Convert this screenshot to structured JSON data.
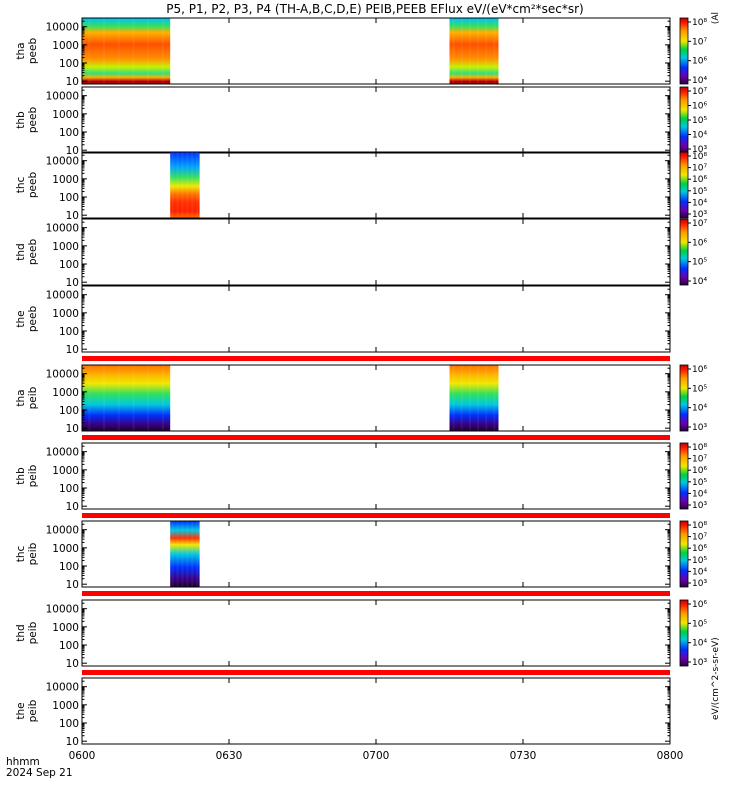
{
  "chart_data": {
    "type": "heatmap",
    "title": "P5, P1, P2, P3, P4 (TH-A,B,C,D,E) PEIB,PEEB EFlux eV/(eV*cm²*sec*sr)",
    "colorbar_title": "eV/(cm^2-s-sr-eV)",
    "colorbar_title_cut": "(Al",
    "x_axis": {
      "tick_labels": [
        "0600",
        "0630",
        "0700",
        "0730",
        "0800"
      ],
      "range": [
        "06:00",
        "08:00"
      ],
      "corner_label": "hhmm",
      "date_label": "2024 Sep 21"
    },
    "y_axis": {
      "scale": "log",
      "tick_labels": [
        "10",
        "100",
        "1000",
        "10000"
      ],
      "range_eV": [
        7,
        30000
      ]
    },
    "panels": [
      {
        "probe": "tha",
        "product": "peeb",
        "colorbar": [
          "10⁴",
          "10⁶",
          "10⁷",
          "10⁸"
        ],
        "data_intervals": [
          [
            "06:00",
            "06:18"
          ],
          [
            "07:15",
            "07:25"
          ]
        ]
      },
      {
        "probe": "thb",
        "product": "peeb",
        "colorbar": [
          "10³",
          "10⁴",
          "10⁵",
          "10⁶",
          "10⁷"
        ],
        "data_intervals": []
      },
      {
        "probe": "thc",
        "product": "peeb",
        "colorbar": [
          "10³",
          "10⁴",
          "10⁵",
          "10⁶",
          "10⁷",
          "10⁸"
        ],
        "data_intervals": [
          [
            "06:18",
            "06:24"
          ]
        ]
      },
      {
        "probe": "thd",
        "product": "peeb",
        "colorbar": [
          "10⁴",
          "10⁵",
          "10⁶",
          "10⁷"
        ],
        "data_intervals": []
      },
      {
        "probe": "the",
        "product": "peeb",
        "colorbar": [],
        "data_intervals": []
      },
      {
        "probe": "tha",
        "product": "peib",
        "colorbar": [
          "10³",
          "10⁴",
          "10⁵",
          "10⁶"
        ],
        "data_intervals": [
          [
            "06:00",
            "06:18"
          ],
          [
            "07:15",
            "07:25"
          ]
        ]
      },
      {
        "probe": "thb",
        "product": "peib",
        "colorbar": [
          "10³",
          "10⁴",
          "10⁵",
          "10⁶",
          "10⁷",
          "10⁸"
        ],
        "data_intervals": []
      },
      {
        "probe": "thc",
        "product": "peib",
        "colorbar": [
          "10³",
          "10⁴",
          "10⁵",
          "10⁶",
          "10⁷",
          "10⁸"
        ],
        "data_intervals": [
          [
            "06:18",
            "06:24"
          ]
        ]
      },
      {
        "probe": "thd",
        "product": "peib",
        "colorbar": [
          "10³",
          "10⁴",
          "10⁵",
          "10⁶"
        ],
        "data_intervals": []
      },
      {
        "probe": "the",
        "product": "peib",
        "colorbar": [],
        "data_intervals": []
      }
    ],
    "flag_bars": {
      "color": "#ff0000",
      "after_panels": [
        4,
        5,
        6,
        7,
        8
      ]
    },
    "colors": {
      "red": "#d40000",
      "orange": "#ff9900",
      "yellow": "#f0e800",
      "green": "#00d040",
      "cyan": "#00c8e0",
      "blue": "#0030ff",
      "purple": "#6a00b0"
    }
  }
}
